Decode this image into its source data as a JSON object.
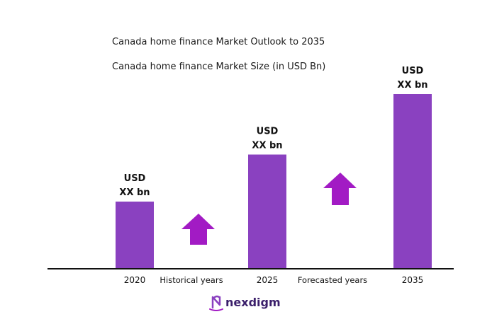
{
  "chart_data": {
    "type": "bar",
    "title": "Canada home finance Market Outlook to 2035",
    "subtitle": "Canada home finance Market Size (in USD Bn)",
    "categories": [
      "2020",
      "2025",
      "2035"
    ],
    "values": [
      1.0,
      1.7,
      2.6
    ],
    "value_labels": [
      [
        "USD",
        "XX bn"
      ],
      [
        "USD",
        "XX bn"
      ],
      [
        "USD",
        "XX bn"
      ]
    ],
    "period_labels": [
      "Historical years",
      "Forecasted years"
    ],
    "bar_color": "#8a41c0",
    "arrow_color": "#a21bc4",
    "grid": false,
    "xlabel": "",
    "ylabel": ""
  },
  "brand": {
    "name": "nexdigm",
    "color": "#3b1f6b",
    "icon": "nexdigm-logo-icon"
  }
}
